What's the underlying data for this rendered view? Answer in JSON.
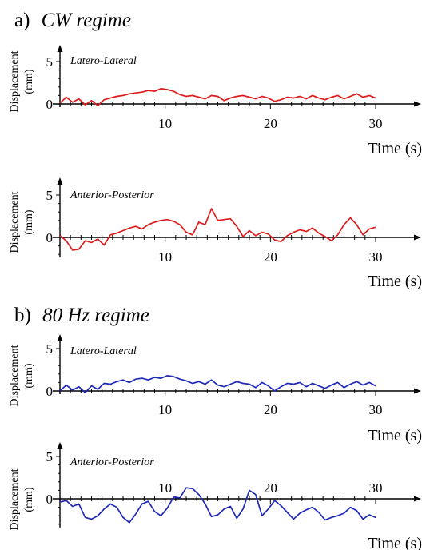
{
  "sections": [
    {
      "letter": "a)",
      "name": "CW regime"
    },
    {
      "letter": "b)",
      "name": "80 Hz regime"
    }
  ],
  "chart_data": [
    {
      "type": "line",
      "section": 0,
      "label": "Latero-Lateral",
      "xlabel": "Time (s)",
      "ylabel": [
        "Displacement",
        "(mm)"
      ],
      "xlim": [
        0,
        30
      ],
      "ylim": [
        0,
        5
      ],
      "xticks": [
        "10",
        "20",
        "30"
      ],
      "yticks": [
        "0",
        "5"
      ],
      "color": "#dd1c1c",
      "series": [
        {
          "x": [
            0,
            0.6,
            1.2,
            1.8,
            2.4,
            3,
            3.6,
            4.2,
            4.8,
            5.4,
            6,
            6.6,
            7.2,
            7.8,
            8.4,
            9,
            9.6,
            10.2,
            10.8,
            11.4,
            12,
            12.6,
            13.2,
            13.8,
            14.4,
            15,
            15.6,
            16.2,
            16.8,
            17.4,
            18,
            18.6,
            19.2,
            19.8,
            20.4,
            21,
            21.6,
            22.2,
            22.8,
            23.4,
            24,
            24.6,
            25.2,
            25.8,
            26.4,
            27,
            27.6,
            28.2,
            28.8,
            29.4,
            30
          ],
          "y": [
            0.1,
            0.8,
            0.2,
            0.6,
            -0.1,
            0.4,
            -0.2,
            0.5,
            0.7,
            0.9,
            1.0,
            1.2,
            1.3,
            1.4,
            1.6,
            1.5,
            1.8,
            1.7,
            1.5,
            1.1,
            0.9,
            1.0,
            0.8,
            0.6,
            1.0,
            0.9,
            0.4,
            0.7,
            0.9,
            1.0,
            0.8,
            0.6,
            0.9,
            0.7,
            0.3,
            0.5,
            0.8,
            0.7,
            0.9,
            0.6,
            1.0,
            0.7,
            0.5,
            0.8,
            1.0,
            0.6,
            0.9,
            1.2,
            0.8,
            1.0,
            0.7
          ]
        }
      ]
    },
    {
      "type": "line",
      "section": 0,
      "label": "Anterior-Posterior",
      "xlabel": "Time (s)",
      "ylabel": [
        "Displacement",
        "(mm)"
      ],
      "xlim": [
        0,
        30
      ],
      "ylim": [
        -2,
        5
      ],
      "xticks": [
        "10",
        "20",
        "30"
      ],
      "yticks": [
        "0",
        "5"
      ],
      "color": "#dd1c1c",
      "series": [
        {
          "x": [
            0,
            0.6,
            1.2,
            1.8,
            2.4,
            3,
            3.6,
            4.2,
            4.8,
            5.4,
            6,
            6.6,
            7.2,
            7.8,
            8.4,
            9,
            9.6,
            10.2,
            10.8,
            11.4,
            12,
            12.6,
            13.2,
            13.8,
            14.4,
            15,
            15.6,
            16.2,
            16.8,
            17.4,
            18,
            18.6,
            19.2,
            19.8,
            20.4,
            21,
            21.6,
            22.2,
            22.8,
            23.4,
            24,
            24.6,
            25.2,
            25.8,
            26.4,
            27,
            27.6,
            28.2,
            28.8,
            29.4,
            30
          ],
          "y": [
            0.2,
            -0.4,
            -1.5,
            -1.4,
            -0.4,
            -0.6,
            -0.2,
            -0.9,
            0.3,
            0.5,
            0.8,
            1.1,
            1.3,
            1.0,
            1.5,
            1.8,
            2.0,
            2.1,
            1.9,
            1.5,
            0.6,
            0.3,
            1.8,
            1.5,
            3.4,
            2.0,
            2.1,
            2.2,
            1.3,
            0.1,
            0.8,
            0.2,
            0.6,
            0.4,
            -0.3,
            -0.5,
            0.2,
            0.6,
            0.9,
            0.7,
            1.1,
            0.5,
            0.1,
            -0.4,
            0.3,
            1.5,
            2.3,
            1.5,
            0.3,
            1.0,
            1.2
          ]
        }
      ]
    },
    {
      "type": "line",
      "section": 1,
      "label": "Latero-Lateral",
      "xlabel": "Time (s)",
      "ylabel": [
        "Displacement",
        "(mm)"
      ],
      "xlim": [
        0,
        30
      ],
      "ylim": [
        0,
        5
      ],
      "xticks": [
        "10",
        "20",
        "30"
      ],
      "yticks": [
        "0",
        "5"
      ],
      "color": "#1f29b8",
      "series": [
        {
          "x": [
            0,
            0.6,
            1.2,
            1.8,
            2.4,
            3,
            3.6,
            4.2,
            4.8,
            5.4,
            6,
            6.6,
            7.2,
            7.8,
            8.4,
            9,
            9.6,
            10.2,
            10.8,
            11.4,
            12,
            12.6,
            13.2,
            13.8,
            14.4,
            15,
            15.6,
            16.2,
            16.8,
            17.4,
            18,
            18.6,
            19.2,
            19.8,
            20.4,
            21,
            21.6,
            22.2,
            22.8,
            23.4,
            24,
            24.6,
            25.2,
            25.8,
            26.4,
            27,
            27.6,
            28.2,
            28.8,
            29.4,
            30
          ],
          "y": [
            0.0,
            0.7,
            0.1,
            0.5,
            -0.2,
            0.6,
            0.2,
            0.9,
            0.8,
            1.1,
            1.3,
            1.0,
            1.4,
            1.5,
            1.3,
            1.6,
            1.5,
            1.8,
            1.7,
            1.4,
            1.2,
            0.9,
            1.1,
            0.8,
            1.3,
            0.7,
            0.5,
            0.8,
            1.1,
            0.9,
            0.8,
            0.4,
            1.0,
            0.6,
            0.0,
            0.5,
            0.9,
            0.8,
            1.0,
            0.5,
            0.9,
            0.6,
            0.3,
            0.7,
            1.0,
            0.4,
            0.8,
            1.1,
            0.7,
            1.0,
            0.6
          ]
        }
      ]
    },
    {
      "type": "line",
      "section": 1,
      "label": "Anterior-Posterior",
      "xlabel": "Time (s)",
      "ylabel": [
        "Displacement",
        "(mm)"
      ],
      "xlim": [
        0,
        30
      ],
      "ylim": [
        -3,
        5
      ],
      "xticks": [
        "10",
        "20",
        "30"
      ],
      "yticks": [
        "0",
        "5"
      ],
      "color": "#1f29b8",
      "series": [
        {
          "x": [
            0,
            0.6,
            1.2,
            1.8,
            2.4,
            3,
            3.6,
            4.2,
            4.8,
            5.4,
            6,
            6.6,
            7.2,
            7.8,
            8.4,
            9,
            9.6,
            10.2,
            10.8,
            11.4,
            12,
            12.6,
            13.2,
            13.8,
            14.4,
            15,
            15.6,
            16.2,
            16.8,
            17.4,
            18,
            18.6,
            19.2,
            19.8,
            20.4,
            21,
            21.6,
            22.2,
            22.8,
            23.4,
            24,
            24.6,
            25.2,
            25.8,
            26.4,
            27,
            27.6,
            28.2,
            28.8,
            29.4,
            30
          ],
          "y": [
            -0.4,
            -0.2,
            -0.9,
            -0.6,
            -2.2,
            -2.4,
            -2.0,
            -1.2,
            -0.6,
            -1.0,
            -2.2,
            -2.8,
            -1.8,
            -0.6,
            -0.3,
            -1.5,
            -2.0,
            -1.1,
            0.2,
            0.1,
            1.3,
            1.2,
            0.5,
            -0.6,
            -2.1,
            -1.9,
            -1.2,
            -0.9,
            -2.3,
            -1.2,
            1.0,
            0.5,
            -2.0,
            -1.2,
            -0.2,
            -0.8,
            -1.6,
            -2.4,
            -1.7,
            -1.3,
            -1.0,
            -1.6,
            -2.5,
            -2.2,
            -2.0,
            -1.7,
            -1.0,
            -1.4,
            -2.4,
            -1.9,
            -2.2
          ]
        }
      ]
    }
  ]
}
